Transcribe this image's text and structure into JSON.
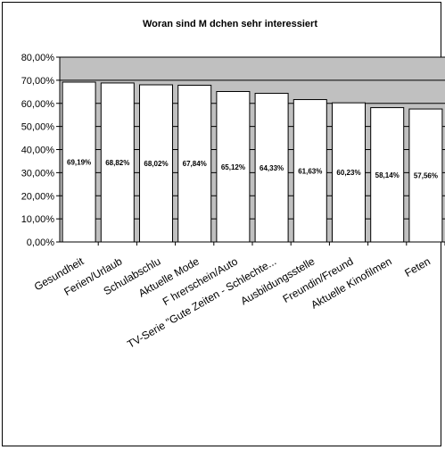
{
  "chart_data": {
    "type": "bar",
    "title": "Woran sind M  dchen sehr interessiert",
    "categories": [
      "Gesundheit",
      "Ferien/Urlaub",
      "Schulabschlu",
      "Aktuelle Mode",
      "F hrerschein/Auto",
      "TV-Serie \"Gute Zeiten - Schlechte...",
      "Ausbildungsstelle",
      "Freundin/Freund",
      "Aktuelle Kinofilmen",
      "Feten"
    ],
    "values": [
      69.19,
      68.82,
      68.02,
      67.84,
      65.12,
      64.33,
      61.63,
      60.23,
      58.14,
      57.56
    ],
    "data_labels": [
      "69,19%",
      "68,82%",
      "68,02%",
      "67,84%",
      "65,12%",
      "64,33%",
      "61,63%",
      "60,23%",
      "58,14%",
      "57,56%"
    ],
    "y_ticks": [
      "0,00%",
      "10,00%",
      "20,00%",
      "30,00%",
      "40,00%",
      "50,00%",
      "60,00%",
      "70,00%",
      "80,00%"
    ],
    "ylim": [
      0,
      80
    ],
    "grid": true,
    "legend": "none",
    "colors": {
      "plot_background": "#c0c0c0",
      "bar_fill": "#ffffff",
      "bar_stroke": "#000000",
      "gridline": "#000000"
    }
  }
}
